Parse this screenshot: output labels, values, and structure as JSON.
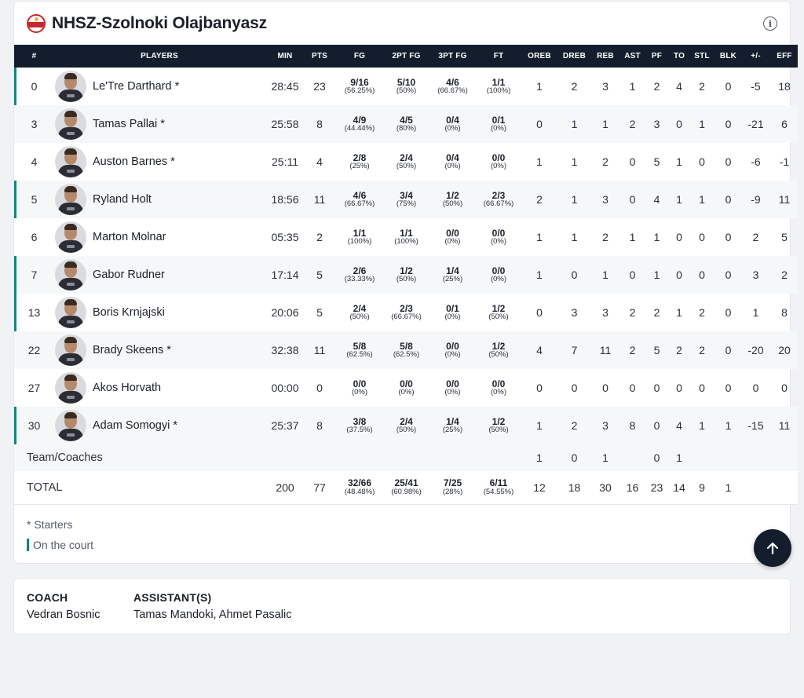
{
  "team": {
    "name": "NHSZ-Szolnoki Olajbanyasz",
    "logo_icon": "team-logo",
    "info_icon": "info-icon"
  },
  "columns": [
    "#",
    "PLAYERS",
    "MIN",
    "PTS",
    "FG",
    "2PT FG",
    "3PT FG",
    "FT",
    "OREB",
    "DREB",
    "REB",
    "AST",
    "PF",
    "TO",
    "STL",
    "BLK",
    "+/-",
    "EFF"
  ],
  "players": [
    {
      "num": "0",
      "name": "Le'Tre Darthard *",
      "on_court": true,
      "min": "28:45",
      "pts": "23",
      "fg": "9/16",
      "fg_pct": "(56.25%)",
      "fg2": "5/10",
      "fg2_pct": "(50%)",
      "fg3": "4/6",
      "fg3_pct": "(66.67%)",
      "ft": "1/1",
      "ft_pct": "(100%)",
      "oreb": "1",
      "dreb": "2",
      "reb": "3",
      "ast": "1",
      "pf": "2",
      "to": "4",
      "stl": "2",
      "blk": "0",
      "pm": "-5",
      "eff": "18"
    },
    {
      "num": "3",
      "name": "Tamas Pallai *",
      "on_court": false,
      "min": "25:58",
      "pts": "8",
      "fg": "4/9",
      "fg_pct": "(44.44%)",
      "fg2": "4/5",
      "fg2_pct": "(80%)",
      "fg3": "0/4",
      "fg3_pct": "(0%)",
      "ft": "0/1",
      "ft_pct": "(0%)",
      "oreb": "0",
      "dreb": "1",
      "reb": "1",
      "ast": "2",
      "pf": "3",
      "to": "0",
      "stl": "1",
      "blk": "0",
      "pm": "-21",
      "eff": "6"
    },
    {
      "num": "4",
      "name": "Auston Barnes *",
      "on_court": false,
      "min": "25:11",
      "pts": "4",
      "fg": "2/8",
      "fg_pct": "(25%)",
      "fg2": "2/4",
      "fg2_pct": "(50%)",
      "fg3": "0/4",
      "fg3_pct": "(0%)",
      "ft": "0/0",
      "ft_pct": "(0%)",
      "oreb": "1",
      "dreb": "1",
      "reb": "2",
      "ast": "0",
      "pf": "5",
      "to": "1",
      "stl": "0",
      "blk": "0",
      "pm": "-6",
      "eff": "-1"
    },
    {
      "num": "5",
      "name": "Ryland Holt",
      "on_court": true,
      "min": "18:56",
      "pts": "11",
      "fg": "4/6",
      "fg_pct": "(66.67%)",
      "fg2": "3/4",
      "fg2_pct": "(75%)",
      "fg3": "1/2",
      "fg3_pct": "(50%)",
      "ft": "2/3",
      "ft_pct": "(66.67%)",
      "oreb": "2",
      "dreb": "1",
      "reb": "3",
      "ast": "0",
      "pf": "4",
      "to": "1",
      "stl": "1",
      "blk": "0",
      "pm": "-9",
      "eff": "11"
    },
    {
      "num": "6",
      "name": "Marton Molnar",
      "on_court": false,
      "min": "05:35",
      "pts": "2",
      "fg": "1/1",
      "fg_pct": "(100%)",
      "fg2": "1/1",
      "fg2_pct": "(100%)",
      "fg3": "0/0",
      "fg3_pct": "(0%)",
      "ft": "0/0",
      "ft_pct": "(0%)",
      "oreb": "1",
      "dreb": "1",
      "reb": "2",
      "ast": "1",
      "pf": "1",
      "to": "0",
      "stl": "0",
      "blk": "0",
      "pm": "2",
      "eff": "5"
    },
    {
      "num": "7",
      "name": "Gabor Rudner",
      "on_court": true,
      "min": "17:14",
      "pts": "5",
      "fg": "2/6",
      "fg_pct": "(33.33%)",
      "fg2": "1/2",
      "fg2_pct": "(50%)",
      "fg3": "1/4",
      "fg3_pct": "(25%)",
      "ft": "0/0",
      "ft_pct": "(0%)",
      "oreb": "1",
      "dreb": "0",
      "reb": "1",
      "ast": "0",
      "pf": "1",
      "to": "0",
      "stl": "0",
      "blk": "0",
      "pm": "3",
      "eff": "2"
    },
    {
      "num": "13",
      "name": "Boris Krnjajski",
      "on_court": true,
      "min": "20:06",
      "pts": "5",
      "fg": "2/4",
      "fg_pct": "(50%)",
      "fg2": "2/3",
      "fg2_pct": "(66.67%)",
      "fg3": "0/1",
      "fg3_pct": "(0%)",
      "ft": "1/2",
      "ft_pct": "(50%)",
      "oreb": "0",
      "dreb": "3",
      "reb": "3",
      "ast": "2",
      "pf": "2",
      "to": "1",
      "stl": "2",
      "blk": "0",
      "pm": "1",
      "eff": "8"
    },
    {
      "num": "22",
      "name": "Brady Skeens *",
      "on_court": false,
      "min": "32:38",
      "pts": "11",
      "fg": "5/8",
      "fg_pct": "(62.5%)",
      "fg2": "5/8",
      "fg2_pct": "(62.5%)",
      "fg3": "0/0",
      "fg3_pct": "(0%)",
      "ft": "1/2",
      "ft_pct": "(50%)",
      "oreb": "4",
      "dreb": "7",
      "reb": "11",
      "ast": "2",
      "pf": "5",
      "to": "2",
      "stl": "2",
      "blk": "0",
      "pm": "-20",
      "eff": "20"
    },
    {
      "num": "27",
      "name": "Akos Horvath",
      "on_court": false,
      "min": "00:00",
      "pts": "0",
      "fg": "0/0",
      "fg_pct": "(0%)",
      "fg2": "0/0",
      "fg2_pct": "(0%)",
      "fg3": "0/0",
      "fg3_pct": "(0%)",
      "ft": "0/0",
      "ft_pct": "(0%)",
      "oreb": "0",
      "dreb": "0",
      "reb": "0",
      "ast": "0",
      "pf": "0",
      "to": "0",
      "stl": "0",
      "blk": "0",
      "pm": "0",
      "eff": "0"
    },
    {
      "num": "30",
      "name": "Adam Somogyi *",
      "on_court": true,
      "min": "25:37",
      "pts": "8",
      "fg": "3/8",
      "fg_pct": "(37.5%)",
      "fg2": "2/4",
      "fg2_pct": "(50%)",
      "fg3": "1/4",
      "fg3_pct": "(25%)",
      "ft": "1/2",
      "ft_pct": "(50%)",
      "oreb": "1",
      "dreb": "2",
      "reb": "3",
      "ast": "8",
      "pf": "0",
      "to": "4",
      "stl": "1",
      "blk": "1",
      "pm": "-15",
      "eff": "11"
    }
  ],
  "team_row": {
    "label": "Team/Coaches",
    "oreb": "1",
    "dreb": "0",
    "reb": "1",
    "ast": "",
    "pf": "0",
    "to": "1",
    "stl": "",
    "blk": ""
  },
  "total_row": {
    "label": "TOTAL",
    "min": "200",
    "pts": "77",
    "fg": "32/66",
    "fg_pct": "(48.48%)",
    "fg2": "25/41",
    "fg2_pct": "(60.98%)",
    "fg3": "7/25",
    "fg3_pct": "(28%)",
    "ft": "6/11",
    "ft_pct": "(54.55%)",
    "oreb": "12",
    "dreb": "18",
    "reb": "30",
    "ast": "16",
    "pf": "23",
    "to": "14",
    "stl": "9",
    "blk": "1"
  },
  "legend": {
    "starters": "* Starters",
    "on_court": "On the court"
  },
  "coach": {
    "coach_title": "COACH",
    "coach_name": "Vedran Bosnic",
    "assistants_title": "ASSISTANT(S)",
    "assistants_names": "Tamas Mandoki, Ahmet Pasalic"
  },
  "colors": {
    "header_bg": "#141d2d",
    "on_court_accent": "#12857c",
    "row_alt": "#f6f7f8"
  },
  "scroll_top_icon": "arrow-up-icon"
}
